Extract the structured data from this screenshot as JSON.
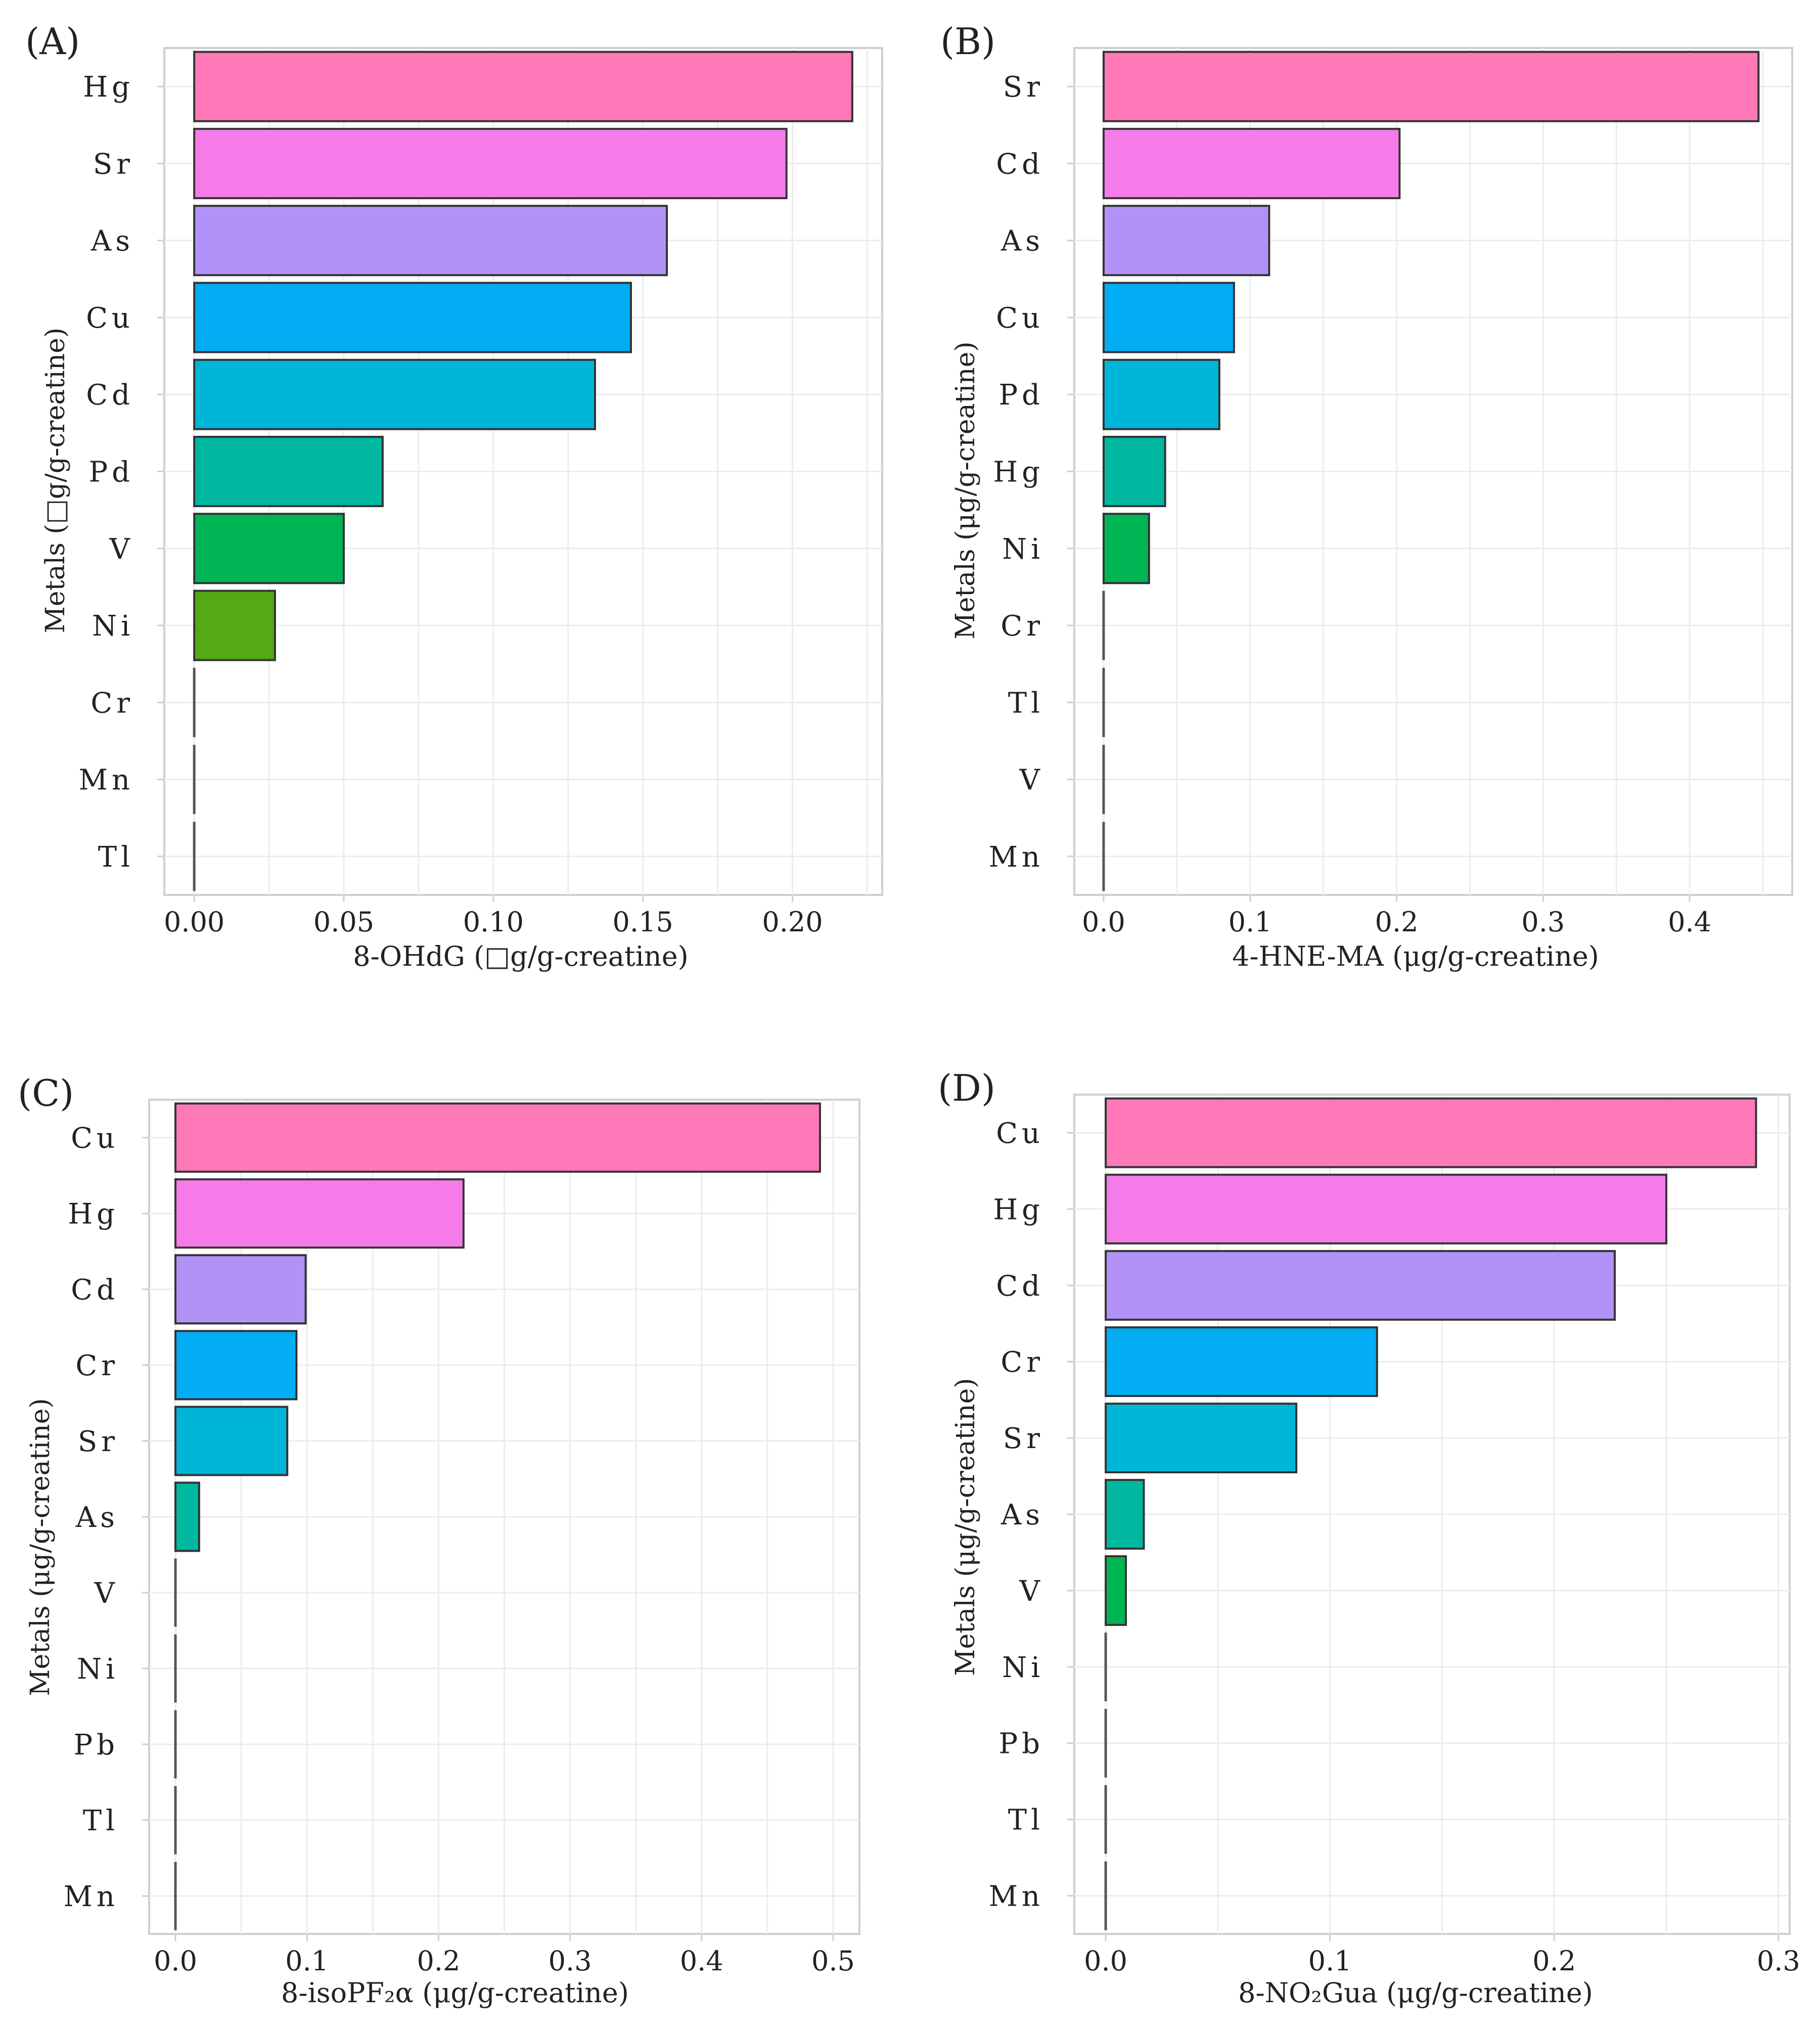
{
  "chart_data": [
    {
      "panel": "(A)",
      "type": "bar",
      "orientation": "horizontal",
      "categories": [
        "Hg",
        "Sr",
        "As",
        "Cu",
        "Cd",
        "Pd",
        "V",
        "Ni",
        "Cr",
        "Mn",
        "Tl"
      ],
      "values": [
        0.22,
        0.198,
        0.158,
        0.146,
        0.134,
        0.063,
        0.05,
        0.027,
        0,
        0,
        0
      ],
      "colors": [
        "#ff79b8",
        "#f57ce8",
        "#b392f7",
        "#02adf4",
        "#00b6d8",
        "#00b79f",
        "#00b553",
        "#53aa12",
        "#888888",
        "#888888",
        "#888888"
      ],
      "xlim": [
        -0.01,
        0.23
      ],
      "xticks": [
        0.0,
        0.05,
        0.1,
        0.15,
        0.2
      ],
      "xtick_labels": [
        "0.00",
        "0.05",
        "0.10",
        "0.15",
        "0.20"
      ],
      "xlabel": "8-OHdG (□g/g-creatine)",
      "ylabel": "Metals (□g/g-creatine)"
    },
    {
      "panel": "(B)",
      "type": "bar",
      "orientation": "horizontal",
      "categories": [
        "Sr",
        "Cd",
        "As",
        "Cu",
        "Pd",
        "Hg",
        "Ni",
        "Cr",
        "Tl",
        "V",
        "Mn"
      ],
      "values": [
        0.447,
        0.202,
        0.113,
        0.089,
        0.079,
        0.042,
        0.031,
        0,
        0,
        0,
        0
      ],
      "colors": [
        "#ff79b8",
        "#f57ce8",
        "#b392f7",
        "#02adf4",
        "#00b6d8",
        "#00b79f",
        "#00b553",
        "#888888",
        "#888888",
        "#888888",
        "#888888"
      ],
      "xlim": [
        -0.02,
        0.47
      ],
      "xticks": [
        0.0,
        0.1,
        0.2,
        0.3,
        0.4
      ],
      "xtick_labels": [
        "0.0",
        "0.1",
        "0.2",
        "0.3",
        "0.4"
      ],
      "xlabel": "4-HNE-MA (μg/g-creatine)",
      "ylabel": "Metals (μg/g-creatine)"
    },
    {
      "panel": "(C)",
      "type": "bar",
      "orientation": "horizontal",
      "categories": [
        "Cu",
        "Hg",
        "Cd",
        "Cr",
        "Sr",
        "As",
        "V",
        "Ni",
        "Pb",
        "Tl",
        "Mn"
      ],
      "values": [
        0.49,
        0.219,
        0.099,
        0.092,
        0.085,
        0.018,
        0,
        0,
        0,
        0,
        0
      ],
      "colors": [
        "#ff79b8",
        "#f57ce8",
        "#b392f7",
        "#02adf4",
        "#00b6d8",
        "#00b79f",
        "#888888",
        "#888888",
        "#888888",
        "#888888",
        "#888888"
      ],
      "xlim": [
        -0.02,
        0.52
      ],
      "xticks": [
        0.0,
        0.1,
        0.2,
        0.3,
        0.4,
        0.5
      ],
      "xtick_labels": [
        "0.0",
        "0.1",
        "0.2",
        "0.3",
        "0.4",
        "0.5"
      ],
      "xlabel": "8-isoPF₂α (μg/g-creatine)",
      "ylabel": "Metals (μg/g-creatine)"
    },
    {
      "panel": "(D)",
      "type": "bar",
      "orientation": "horizontal",
      "categories": [
        "Cu",
        "Hg",
        "Cd",
        "Cr",
        "Sr",
        "As",
        "V",
        "Ni",
        "Pb",
        "Tl",
        "Mn"
      ],
      "values": [
        0.29,
        0.25,
        0.227,
        0.121,
        0.085,
        0.017,
        0.009,
        0,
        0,
        0,
        0
      ],
      "colors": [
        "#ff79b8",
        "#f57ce8",
        "#b392f7",
        "#02adf4",
        "#00b6d8",
        "#00b79f",
        "#00b553",
        "#888888",
        "#888888",
        "#888888",
        "#888888"
      ],
      "xlim": [
        -0.014,
        0.305
      ],
      "xticks": [
        0.0,
        0.1,
        0.2,
        0.3
      ],
      "xtick_labels": [
        "0.0",
        "0.1",
        "0.2",
        "0.3"
      ],
      "xlabel": "8-NO₂Gua (μg/g-creatine)",
      "ylabel": "Metals (μg/g-creatine)"
    }
  ]
}
